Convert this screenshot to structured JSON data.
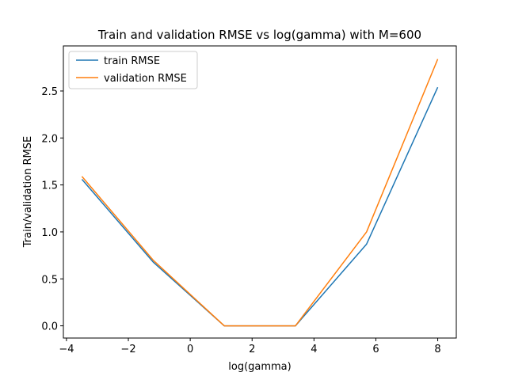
{
  "chart_data": {
    "type": "line",
    "title": "Train and validation RMSE vs log(gamma) with M=600",
    "xlabel": "log(gamma)",
    "ylabel": "Train/validation RMSE",
    "xlim": [
      -4.1,
      8.6
    ],
    "ylim": [
      -0.13,
      2.98
    ],
    "x_ticks": [
      -4,
      -2,
      0,
      2,
      4,
      6,
      8
    ],
    "x_tick_labels": [
      "−4",
      "−2",
      "0",
      "2",
      "4",
      "6",
      "8"
    ],
    "y_ticks": [
      0.0,
      0.5,
      1.0,
      1.5,
      2.0,
      2.5
    ],
    "y_tick_labels": [
      "0.0",
      "0.5",
      "1.0",
      "1.5",
      "2.0",
      "2.5"
    ],
    "grid": false,
    "legend_position": "top-left",
    "x": [
      -3.5,
      -1.2,
      1.1,
      3.4,
      5.7,
      8.0
    ],
    "series": [
      {
        "name": "train RMSE",
        "color": "#1f77b4",
        "values": [
          1.56,
          0.68,
          0.0,
          0.0,
          0.87,
          2.54
        ]
      },
      {
        "name": "validation RMSE",
        "color": "#ff7f0e",
        "values": [
          1.59,
          0.7,
          0.0,
          0.0,
          1.0,
          2.84
        ]
      }
    ]
  }
}
